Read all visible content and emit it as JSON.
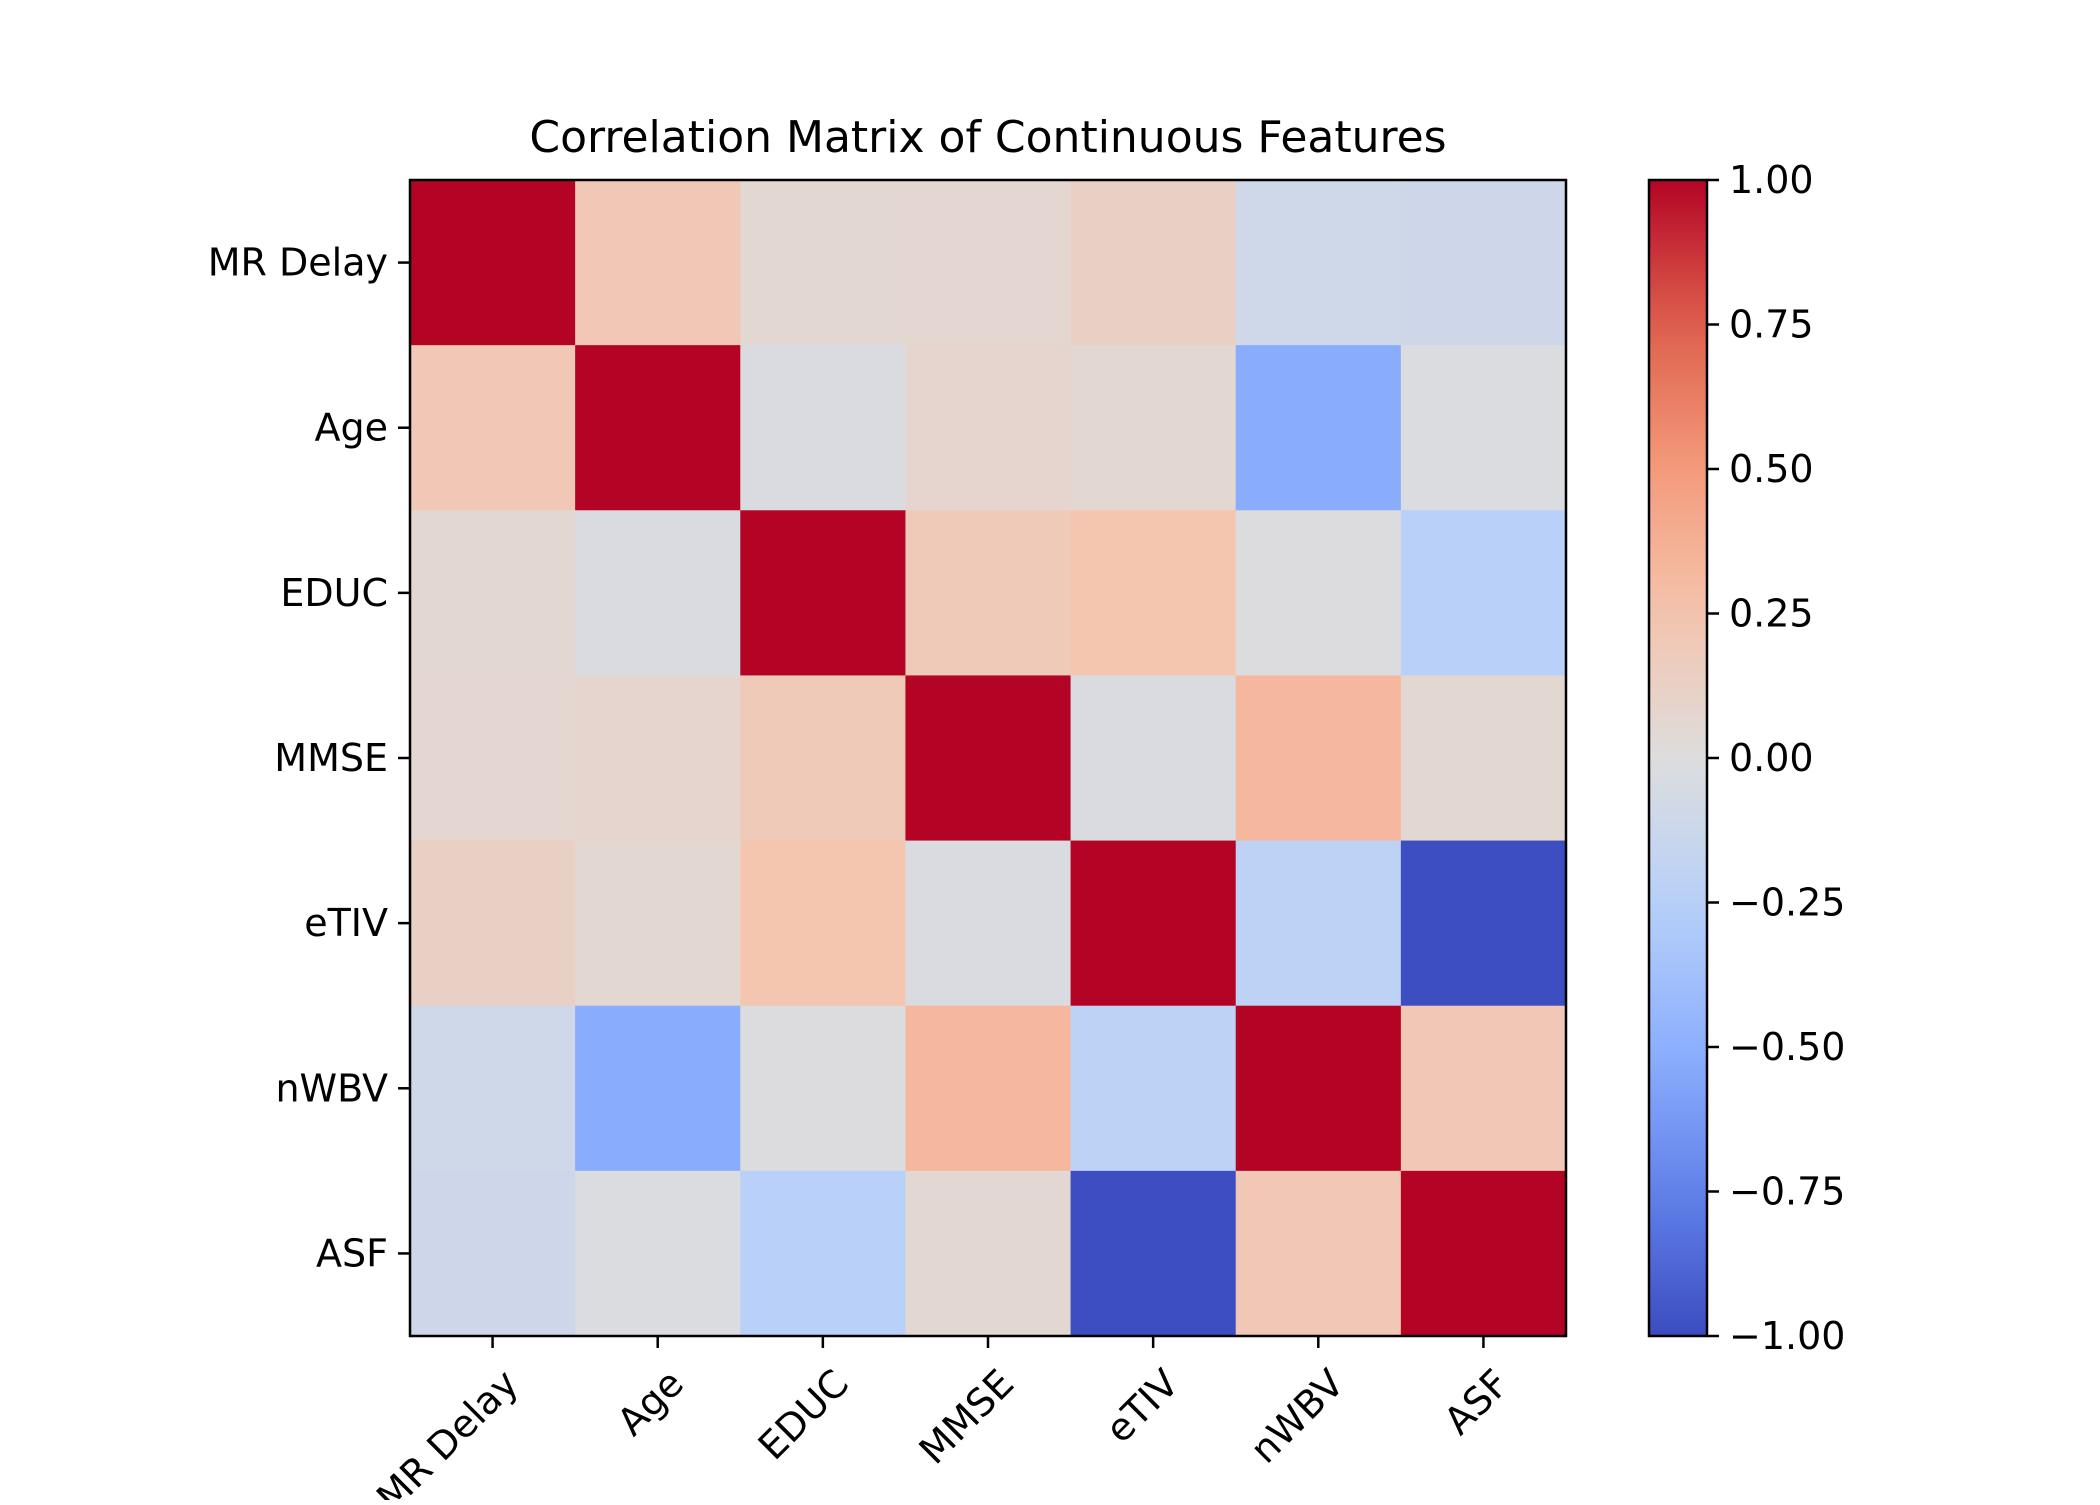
{
  "chart_data": {
    "type": "heatmap",
    "title": "Correlation Matrix of Continuous Features",
    "x_categories": [
      "MR Delay",
      "Age",
      "EDUC",
      "MMSE",
      "eTIV",
      "nWBV",
      "ASF"
    ],
    "y_categories": [
      "MR Delay",
      "Age",
      "EDUC",
      "MMSE",
      "eTIV",
      "nWBV",
      "ASF"
    ],
    "values": [
      [
        1.0,
        0.21,
        0.06,
        0.07,
        0.13,
        -0.1,
        -0.11
      ],
      [
        0.21,
        1.0,
        -0.03,
        0.08,
        0.06,
        -0.52,
        -0.02
      ],
      [
        0.06,
        -0.03,
        1.0,
        0.19,
        0.24,
        -0.01,
        -0.24
      ],
      [
        0.07,
        0.08,
        0.19,
        1.0,
        -0.03,
        0.32,
        0.06
      ],
      [
        0.13,
        0.06,
        0.24,
        -0.03,
        1.0,
        -0.21,
        -0.99
      ],
      [
        -0.1,
        -0.52,
        -0.01,
        0.32,
        -0.21,
        1.0,
        0.21
      ],
      [
        -0.11,
        -0.02,
        -0.24,
        0.06,
        -0.99,
        0.21,
        1.0
      ]
    ],
    "colormap": "coolwarm",
    "vmin": -1.0,
    "vmax": 1.0,
    "colorbar_ticks": [
      "1.00",
      "0.75",
      "0.50",
      "0.25",
      "0.00",
      "−0.25",
      "−0.50",
      "−0.75",
      "−1.00"
    ],
    "colorbar_tick_values": [
      1.0,
      0.75,
      0.5,
      0.25,
      0.0,
      -0.25,
      -0.5,
      -0.75,
      -1.0
    ],
    "xtick_rotation_deg": -45,
    "grid": false
  }
}
